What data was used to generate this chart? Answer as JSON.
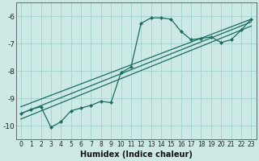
{
  "xlabel": "Humidex (Indice chaleur)",
  "bg_color": "#cce9e5",
  "grid_color": "#a8d5d0",
  "line_color": "#1a6b60",
  "xlim": [
    -0.5,
    23.5
  ],
  "ylim": [
    -10.5,
    -5.5
  ],
  "yticks": [
    -10,
    -9,
    -8,
    -7,
    -6
  ],
  "xticks": [
    0,
    1,
    2,
    3,
    4,
    5,
    6,
    7,
    8,
    9,
    10,
    11,
    12,
    13,
    14,
    15,
    16,
    17,
    18,
    19,
    20,
    21,
    22,
    23
  ],
  "main_x": [
    0,
    1,
    2,
    3,
    4,
    5,
    6,
    7,
    8,
    9,
    10,
    11,
    12,
    13,
    14,
    15,
    16,
    17,
    18,
    19,
    20,
    21,
    22,
    23
  ],
  "main_y": [
    -9.55,
    -9.4,
    -9.3,
    -10.05,
    -9.85,
    -9.45,
    -9.35,
    -9.25,
    -9.1,
    -9.15,
    -8.05,
    -7.85,
    -6.25,
    -6.05,
    -6.05,
    -6.1,
    -6.55,
    -6.85,
    -6.8,
    -6.75,
    -6.95,
    -6.85,
    -6.5,
    -6.1
  ],
  "reg_lines": [
    {
      "x0": 0,
      "y0": -9.3,
      "x1": 23,
      "y1": -6.1
    },
    {
      "x0": 0,
      "y0": -9.55,
      "x1": 23,
      "y1": -6.2
    },
    {
      "x0": 0,
      "y0": -9.75,
      "x1": 23,
      "y1": -6.35
    }
  ]
}
